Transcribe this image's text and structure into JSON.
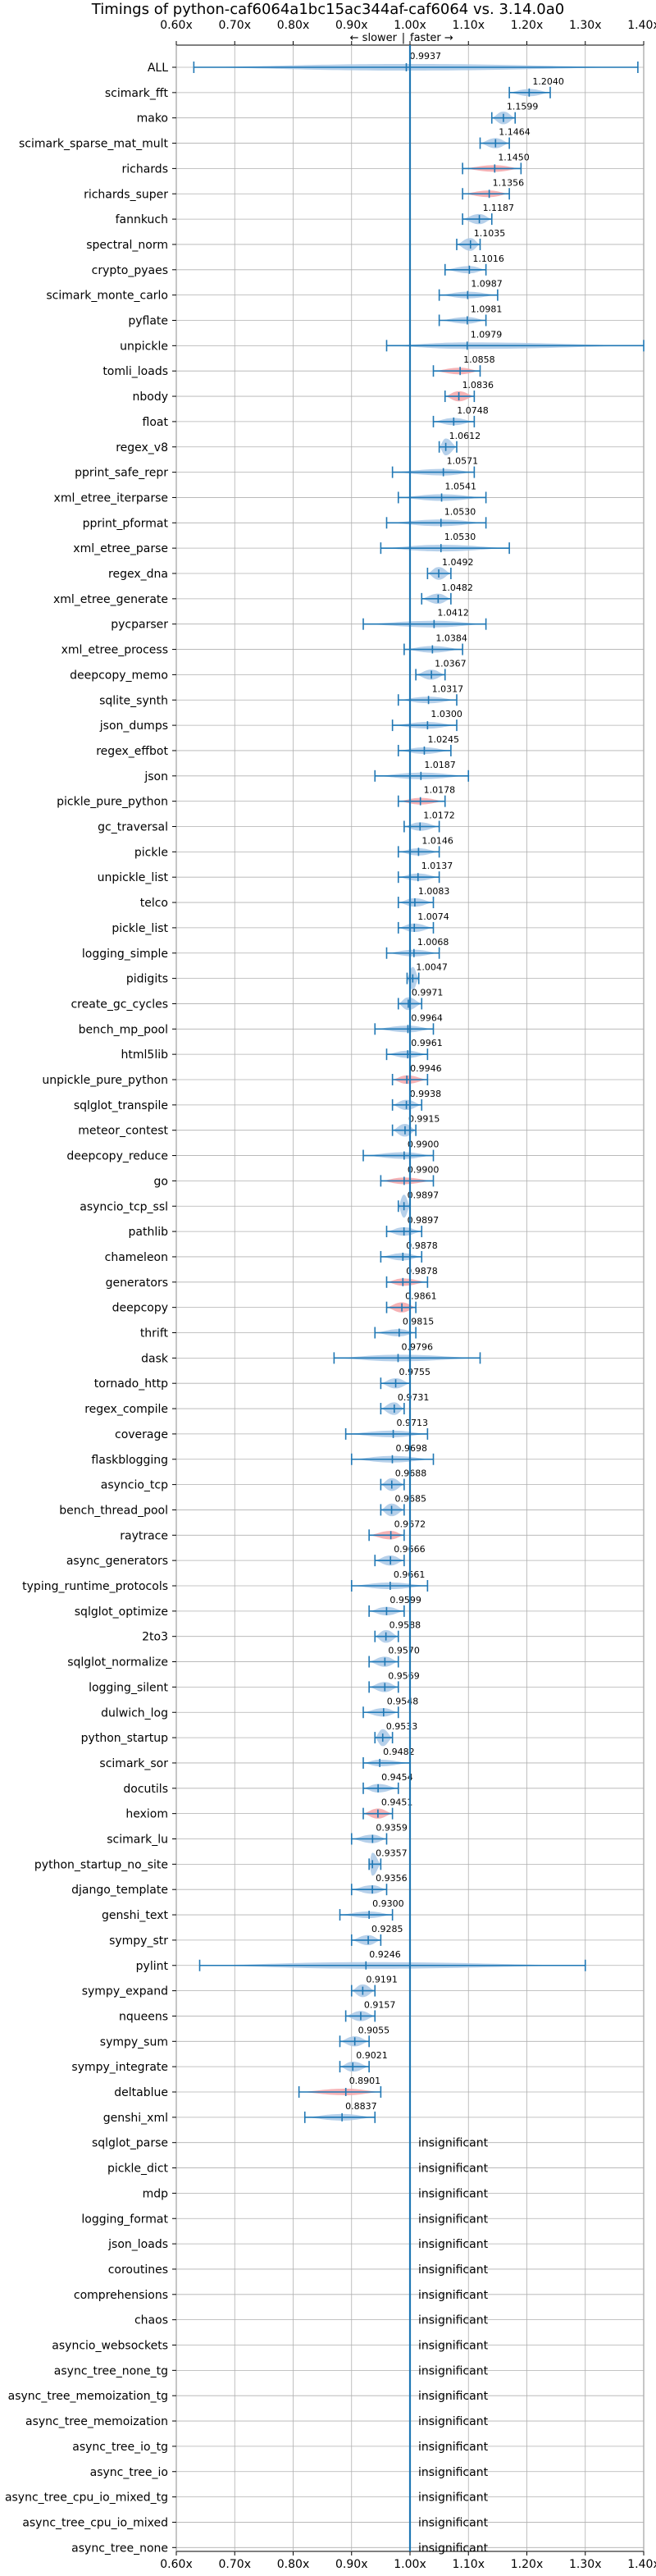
{
  "chart_data": {
    "type": "violin",
    "title": "Timings of python-caf6064a1bc15ac344af-caf6064 vs. 3.14.0a0",
    "direction_labels": {
      "slower": "← slower",
      "separator": "|",
      "faster": "faster →"
    },
    "xlim": [
      0.6,
      1.4
    ],
    "xticks": [
      0.6,
      0.7,
      0.8,
      0.9,
      1.0,
      1.1,
      1.2,
      1.3,
      1.4
    ],
    "xtick_labels": [
      "0.60x",
      "0.70x",
      "0.80x",
      "0.90x",
      "1.00x",
      "1.10x",
      "1.20x",
      "1.30x",
      "1.40x"
    ],
    "reference_line": 1.0,
    "grid": true,
    "colors": {
      "normal": "#a9c8e6",
      "significant": "#f4a5a8",
      "line": "#1f77b4",
      "grid": "#b0b0b0"
    },
    "insignificant_label": "insignificant",
    "benchmarks": [
      {
        "name": "ALL",
        "value": 0.9937,
        "low": 0.63,
        "high": 1.39,
        "highlight": false
      },
      {
        "name": "scimark_fft",
        "value": 1.204,
        "low": 1.17,
        "high": 1.24,
        "highlight": false
      },
      {
        "name": "mako",
        "value": 1.1599,
        "low": 1.14,
        "high": 1.18,
        "highlight": false
      },
      {
        "name": "scimark_sparse_mat_mult",
        "value": 1.1464,
        "low": 1.12,
        "high": 1.17,
        "highlight": false
      },
      {
        "name": "richards",
        "value": 1.145,
        "low": 1.09,
        "high": 1.19,
        "highlight": true
      },
      {
        "name": "richards_super",
        "value": 1.1356,
        "low": 1.09,
        "high": 1.17,
        "highlight": true
      },
      {
        "name": "fannkuch",
        "value": 1.1187,
        "low": 1.09,
        "high": 1.14,
        "highlight": false
      },
      {
        "name": "spectral_norm",
        "value": 1.1035,
        "low": 1.08,
        "high": 1.12,
        "highlight": false
      },
      {
        "name": "crypto_pyaes",
        "value": 1.1016,
        "low": 1.06,
        "high": 1.13,
        "highlight": false
      },
      {
        "name": "scimark_monte_carlo",
        "value": 1.0987,
        "low": 1.05,
        "high": 1.15,
        "highlight": false
      },
      {
        "name": "pyflate",
        "value": 1.0981,
        "low": 1.05,
        "high": 1.13,
        "highlight": false
      },
      {
        "name": "unpickle",
        "value": 1.0979,
        "low": 0.96,
        "high": 1.4,
        "highlight": false
      },
      {
        "name": "tomli_loads",
        "value": 1.0858,
        "low": 1.04,
        "high": 1.12,
        "highlight": true
      },
      {
        "name": "nbody",
        "value": 1.0836,
        "low": 1.06,
        "high": 1.11,
        "highlight": true
      },
      {
        "name": "float",
        "value": 1.0748,
        "low": 1.04,
        "high": 1.11,
        "highlight": false
      },
      {
        "name": "regex_v8",
        "value": 1.0612,
        "low": 1.05,
        "high": 1.08,
        "highlight": false
      },
      {
        "name": "pprint_safe_repr",
        "value": 1.0571,
        "low": 0.97,
        "high": 1.11,
        "highlight": false
      },
      {
        "name": "xml_etree_iterparse",
        "value": 1.0541,
        "low": 0.98,
        "high": 1.13,
        "highlight": false
      },
      {
        "name": "pprint_pformat",
        "value": 1.053,
        "low": 0.96,
        "high": 1.13,
        "highlight": false
      },
      {
        "name": "xml_etree_parse",
        "value": 1.053,
        "low": 0.95,
        "high": 1.17,
        "highlight": false
      },
      {
        "name": "regex_dna",
        "value": 1.0492,
        "low": 1.03,
        "high": 1.07,
        "highlight": false
      },
      {
        "name": "xml_etree_generate",
        "value": 1.0482,
        "low": 1.02,
        "high": 1.07,
        "highlight": false
      },
      {
        "name": "pycparser",
        "value": 1.0412,
        "low": 0.92,
        "high": 1.13,
        "highlight": false
      },
      {
        "name": "xml_etree_process",
        "value": 1.0384,
        "low": 0.99,
        "high": 1.09,
        "highlight": false
      },
      {
        "name": "deepcopy_memo",
        "value": 1.0367,
        "low": 1.01,
        "high": 1.06,
        "highlight": false
      },
      {
        "name": "sqlite_synth",
        "value": 1.0317,
        "low": 0.98,
        "high": 1.08,
        "highlight": false
      },
      {
        "name": "json_dumps",
        "value": 1.03,
        "low": 0.97,
        "high": 1.08,
        "highlight": false
      },
      {
        "name": "regex_effbot",
        "value": 1.0245,
        "low": 0.98,
        "high": 1.07,
        "highlight": false
      },
      {
        "name": "json",
        "value": 1.0187,
        "low": 0.94,
        "high": 1.1,
        "highlight": false
      },
      {
        "name": "pickle_pure_python",
        "value": 1.0178,
        "low": 0.98,
        "high": 1.06,
        "highlight": true
      },
      {
        "name": "gc_traversal",
        "value": 1.0172,
        "low": 0.99,
        "high": 1.05,
        "highlight": false
      },
      {
        "name": "pickle",
        "value": 1.0146,
        "low": 0.98,
        "high": 1.05,
        "highlight": false
      },
      {
        "name": "unpickle_list",
        "value": 1.0137,
        "low": 0.98,
        "high": 1.05,
        "highlight": false
      },
      {
        "name": "telco",
        "value": 1.0083,
        "low": 0.98,
        "high": 1.04,
        "highlight": false
      },
      {
        "name": "pickle_list",
        "value": 1.0074,
        "low": 0.98,
        "high": 1.04,
        "highlight": false
      },
      {
        "name": "logging_simple",
        "value": 1.0068,
        "low": 0.96,
        "high": 1.05,
        "highlight": false
      },
      {
        "name": "pidigits",
        "value": 1.0047,
        "low": 0.995,
        "high": 1.015,
        "highlight": false
      },
      {
        "name": "create_gc_cycles",
        "value": 0.9971,
        "low": 0.98,
        "high": 1.02,
        "highlight": false
      },
      {
        "name": "bench_mp_pool",
        "value": 0.9964,
        "low": 0.94,
        "high": 1.04,
        "highlight": false
      },
      {
        "name": "html5lib",
        "value": 0.9961,
        "low": 0.96,
        "high": 1.03,
        "highlight": false
      },
      {
        "name": "unpickle_pure_python",
        "value": 0.9946,
        "low": 0.97,
        "high": 1.03,
        "highlight": true
      },
      {
        "name": "sqlglot_transpile",
        "value": 0.9938,
        "low": 0.97,
        "high": 1.02,
        "highlight": false
      },
      {
        "name": "meteor_contest",
        "value": 0.9915,
        "low": 0.97,
        "high": 1.01,
        "highlight": false
      },
      {
        "name": "deepcopy_reduce",
        "value": 0.99,
        "low": 0.92,
        "high": 1.04,
        "highlight": false
      },
      {
        "name": "go",
        "value": 0.99,
        "low": 0.95,
        "high": 1.04,
        "highlight": true
      },
      {
        "name": "asyncio_tcp_ssl",
        "value": 0.9897,
        "low": 0.98,
        "high": 1.0,
        "highlight": false
      },
      {
        "name": "pathlib",
        "value": 0.9897,
        "low": 0.96,
        "high": 1.02,
        "highlight": false
      },
      {
        "name": "chameleon",
        "value": 0.9878,
        "low": 0.95,
        "high": 1.02,
        "highlight": false
      },
      {
        "name": "generators",
        "value": 0.9878,
        "low": 0.96,
        "high": 1.03,
        "highlight": true
      },
      {
        "name": "deepcopy",
        "value": 0.9861,
        "low": 0.96,
        "high": 1.01,
        "highlight": true
      },
      {
        "name": "thrift",
        "value": 0.9815,
        "low": 0.94,
        "high": 1.01,
        "highlight": false
      },
      {
        "name": "dask",
        "value": 0.9796,
        "low": 0.87,
        "high": 1.12,
        "highlight": false
      },
      {
        "name": "tornado_http",
        "value": 0.9755,
        "low": 0.95,
        "high": 1.0,
        "highlight": false
      },
      {
        "name": "regex_compile",
        "value": 0.9731,
        "low": 0.95,
        "high": 0.99,
        "highlight": false
      },
      {
        "name": "coverage",
        "value": 0.9713,
        "low": 0.89,
        "high": 1.03,
        "highlight": false
      },
      {
        "name": "flaskblogging",
        "value": 0.9698,
        "low": 0.9,
        "high": 1.04,
        "highlight": false
      },
      {
        "name": "asyncio_tcp",
        "value": 0.9688,
        "low": 0.95,
        "high": 0.99,
        "highlight": false
      },
      {
        "name": "bench_thread_pool",
        "value": 0.9685,
        "low": 0.95,
        "high": 0.99,
        "highlight": false
      },
      {
        "name": "raytrace",
        "value": 0.9672,
        "low": 0.93,
        "high": 0.99,
        "highlight": true
      },
      {
        "name": "async_generators",
        "value": 0.9666,
        "low": 0.94,
        "high": 0.99,
        "highlight": false
      },
      {
        "name": "typing_runtime_protocols",
        "value": 0.9661,
        "low": 0.9,
        "high": 1.03,
        "highlight": false
      },
      {
        "name": "sqlglot_optimize",
        "value": 0.9599,
        "low": 0.93,
        "high": 0.99,
        "highlight": false
      },
      {
        "name": "2to3",
        "value": 0.9588,
        "low": 0.94,
        "high": 0.98,
        "highlight": false
      },
      {
        "name": "sqlglot_normalize",
        "value": 0.957,
        "low": 0.93,
        "high": 0.98,
        "highlight": false
      },
      {
        "name": "logging_silent",
        "value": 0.9569,
        "low": 0.93,
        "high": 0.98,
        "highlight": false
      },
      {
        "name": "dulwich_log",
        "value": 0.9548,
        "low": 0.92,
        "high": 0.98,
        "highlight": false
      },
      {
        "name": "python_startup",
        "value": 0.9533,
        "low": 0.94,
        "high": 0.97,
        "highlight": false
      },
      {
        "name": "scimark_sor",
        "value": 0.9482,
        "low": 0.92,
        "high": 1.0,
        "highlight": false
      },
      {
        "name": "docutils",
        "value": 0.9454,
        "low": 0.92,
        "high": 0.98,
        "highlight": false
      },
      {
        "name": "hexiom",
        "value": 0.9451,
        "low": 0.92,
        "high": 0.97,
        "highlight": true
      },
      {
        "name": "scimark_lu",
        "value": 0.9359,
        "low": 0.9,
        "high": 0.96,
        "highlight": false
      },
      {
        "name": "python_startup_no_site",
        "value": 0.9357,
        "low": 0.93,
        "high": 0.95,
        "highlight": false
      },
      {
        "name": "django_template",
        "value": 0.9356,
        "low": 0.9,
        "high": 0.96,
        "highlight": false
      },
      {
        "name": "genshi_text",
        "value": 0.93,
        "low": 0.88,
        "high": 0.97,
        "highlight": false
      },
      {
        "name": "sympy_str",
        "value": 0.9285,
        "low": 0.9,
        "high": 0.95,
        "highlight": false
      },
      {
        "name": "pylint",
        "value": 0.9246,
        "low": 0.64,
        "high": 1.3,
        "highlight": false
      },
      {
        "name": "sympy_expand",
        "value": 0.9191,
        "low": 0.9,
        "high": 0.94,
        "highlight": false
      },
      {
        "name": "nqueens",
        "value": 0.9157,
        "low": 0.89,
        "high": 0.94,
        "highlight": false
      },
      {
        "name": "sympy_sum",
        "value": 0.9055,
        "low": 0.88,
        "high": 0.93,
        "highlight": false
      },
      {
        "name": "sympy_integrate",
        "value": 0.9021,
        "low": 0.88,
        "high": 0.93,
        "highlight": false
      },
      {
        "name": "deltablue",
        "value": 0.8901,
        "low": 0.81,
        "high": 0.95,
        "highlight": true
      },
      {
        "name": "genshi_xml",
        "value": 0.8837,
        "low": 0.82,
        "high": 0.94,
        "highlight": false
      },
      {
        "name": "sqlglot_parse",
        "value": null,
        "insignificant": true
      },
      {
        "name": "pickle_dict",
        "value": null,
        "insignificant": true
      },
      {
        "name": "mdp",
        "value": null,
        "insignificant": true
      },
      {
        "name": "logging_format",
        "value": null,
        "insignificant": true
      },
      {
        "name": "json_loads",
        "value": null,
        "insignificant": true
      },
      {
        "name": "coroutines",
        "value": null,
        "insignificant": true
      },
      {
        "name": "comprehensions",
        "value": null,
        "insignificant": true
      },
      {
        "name": "chaos",
        "value": null,
        "insignificant": true
      },
      {
        "name": "asyncio_websockets",
        "value": null,
        "insignificant": true
      },
      {
        "name": "async_tree_none_tg",
        "value": null,
        "insignificant": true
      },
      {
        "name": "async_tree_memoization_tg",
        "value": null,
        "insignificant": true
      },
      {
        "name": "async_tree_memoization",
        "value": null,
        "insignificant": true
      },
      {
        "name": "async_tree_io_tg",
        "value": null,
        "insignificant": true
      },
      {
        "name": "async_tree_io",
        "value": null,
        "insignificant": true
      },
      {
        "name": "async_tree_cpu_io_mixed_tg",
        "value": null,
        "insignificant": true
      },
      {
        "name": "async_tree_cpu_io_mixed",
        "value": null,
        "insignificant": true
      },
      {
        "name": "async_tree_none",
        "value": null,
        "insignificant": true
      }
    ]
  }
}
